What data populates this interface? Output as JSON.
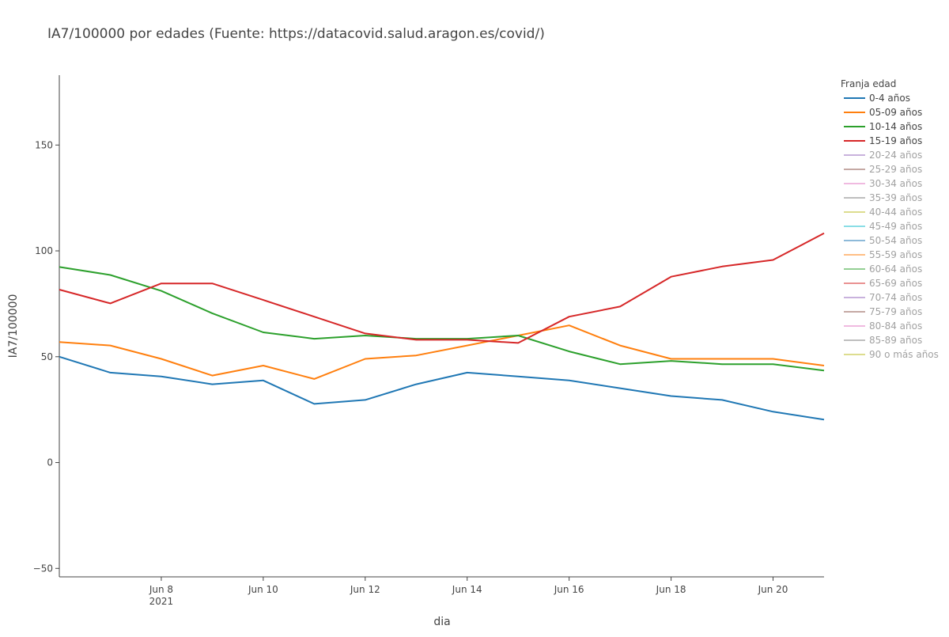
{
  "chart_data": {
    "type": "line",
    "title": "IA7/100000 por edades (Fuente: https://datacovid.salud.aragon.es/covid/)",
    "xlabel": "dia",
    "ylabel": "IA7/100000",
    "x": [
      "2021-06-06",
      "2021-06-07",
      "2021-06-08",
      "2021-06-09",
      "2021-06-10",
      "2021-06-11",
      "2021-06-12",
      "2021-06-13",
      "2021-06-14",
      "2021-06-15",
      "2021-06-16",
      "2021-06-17",
      "2021-06-18",
      "2021-06-19",
      "2021-06-20",
      "2021-06-21"
    ],
    "xlim": [
      "2021-06-06",
      "2021-06-21"
    ],
    "ylim": [
      -54,
      183
    ],
    "x_ticks": [
      {
        "date": "2021-06-08",
        "label": "Jun 8",
        "sublabel": "2021"
      },
      {
        "date": "2021-06-10",
        "label": "Jun 10",
        "sublabel": ""
      },
      {
        "date": "2021-06-12",
        "label": "Jun 12",
        "sublabel": ""
      },
      {
        "date": "2021-06-14",
        "label": "Jun 14",
        "sublabel": ""
      },
      {
        "date": "2021-06-16",
        "label": "Jun 16",
        "sublabel": ""
      },
      {
        "date": "2021-06-18",
        "label": "Jun 18",
        "sublabel": ""
      },
      {
        "date": "2021-06-20",
        "label": "Jun 20",
        "sublabel": ""
      }
    ],
    "y_ticks": [
      {
        "value": -50,
        "label": "−50"
      },
      {
        "value": 0,
        "label": "0"
      },
      {
        "value": 50,
        "label": "50"
      },
      {
        "value": 100,
        "label": "100"
      },
      {
        "value": 150,
        "label": "150"
      }
    ],
    "grid": false,
    "legend_title": "Franja edad",
    "legend_position": "right",
    "series": [
      {
        "name": "0-4 años",
        "color": "#1f77b4",
        "visible": true,
        "values": [
          50,
          42.5,
          40.7,
          37,
          38.8,
          27.7,
          29.6,
          37,
          42.5,
          40.7,
          38.8,
          35.1,
          31.4,
          29.6,
          24,
          20.3
        ]
      },
      {
        "name": "05-09 años",
        "color": "#ff7f0e",
        "visible": true,
        "values": [
          56.9,
          55.3,
          49,
          41.1,
          45.8,
          39.5,
          49,
          50.6,
          55.3,
          60,
          64.8,
          55.3,
          49,
          49,
          49,
          45.8
        ]
      },
      {
        "name": "10-14 años",
        "color": "#2ca02c",
        "visible": true,
        "values": [
          92.4,
          88.6,
          81.1,
          70.5,
          61.5,
          58.5,
          60,
          58.5,
          58.5,
          60,
          52.5,
          46.5,
          48,
          46.5,
          46.5,
          43.5
        ]
      },
      {
        "name": "15-19 años",
        "color": "#d62728",
        "visible": true,
        "values": [
          81.7,
          75.2,
          84.6,
          84.6,
          76.8,
          68.9,
          61,
          58,
          58,
          56.5,
          68.9,
          73.7,
          87.8,
          92.6,
          95.7,
          108.3
        ]
      },
      {
        "name": "20-24 años",
        "color": "#9467bd",
        "visible": false
      },
      {
        "name": "25-29 años",
        "color": "#8c564b",
        "visible": false
      },
      {
        "name": "30-34 años",
        "color": "#e377c2",
        "visible": false
      },
      {
        "name": "35-39 años",
        "color": "#7f7f7f",
        "visible": false
      },
      {
        "name": "40-44 años",
        "color": "#bcbd22",
        "visible": false
      },
      {
        "name": "45-49 años",
        "color": "#17becf",
        "visible": false
      },
      {
        "name": "50-54 años",
        "color": "#1f77b4",
        "visible": false
      },
      {
        "name": "55-59 años",
        "color": "#ff7f0e",
        "visible": false
      },
      {
        "name": "60-64 años",
        "color": "#2ca02c",
        "visible": false
      },
      {
        "name": "65-69 años",
        "color": "#d62728",
        "visible": false
      },
      {
        "name": "70-74 años",
        "color": "#9467bd",
        "visible": false
      },
      {
        "name": "75-79 años",
        "color": "#8c564b",
        "visible": false
      },
      {
        "name": "80-84 años",
        "color": "#e377c2",
        "visible": false
      },
      {
        "name": "85-89 años",
        "color": "#7f7f7f",
        "visible": false
      },
      {
        "name": "90 o más años",
        "color": "#bcbd22",
        "visible": false
      }
    ]
  }
}
